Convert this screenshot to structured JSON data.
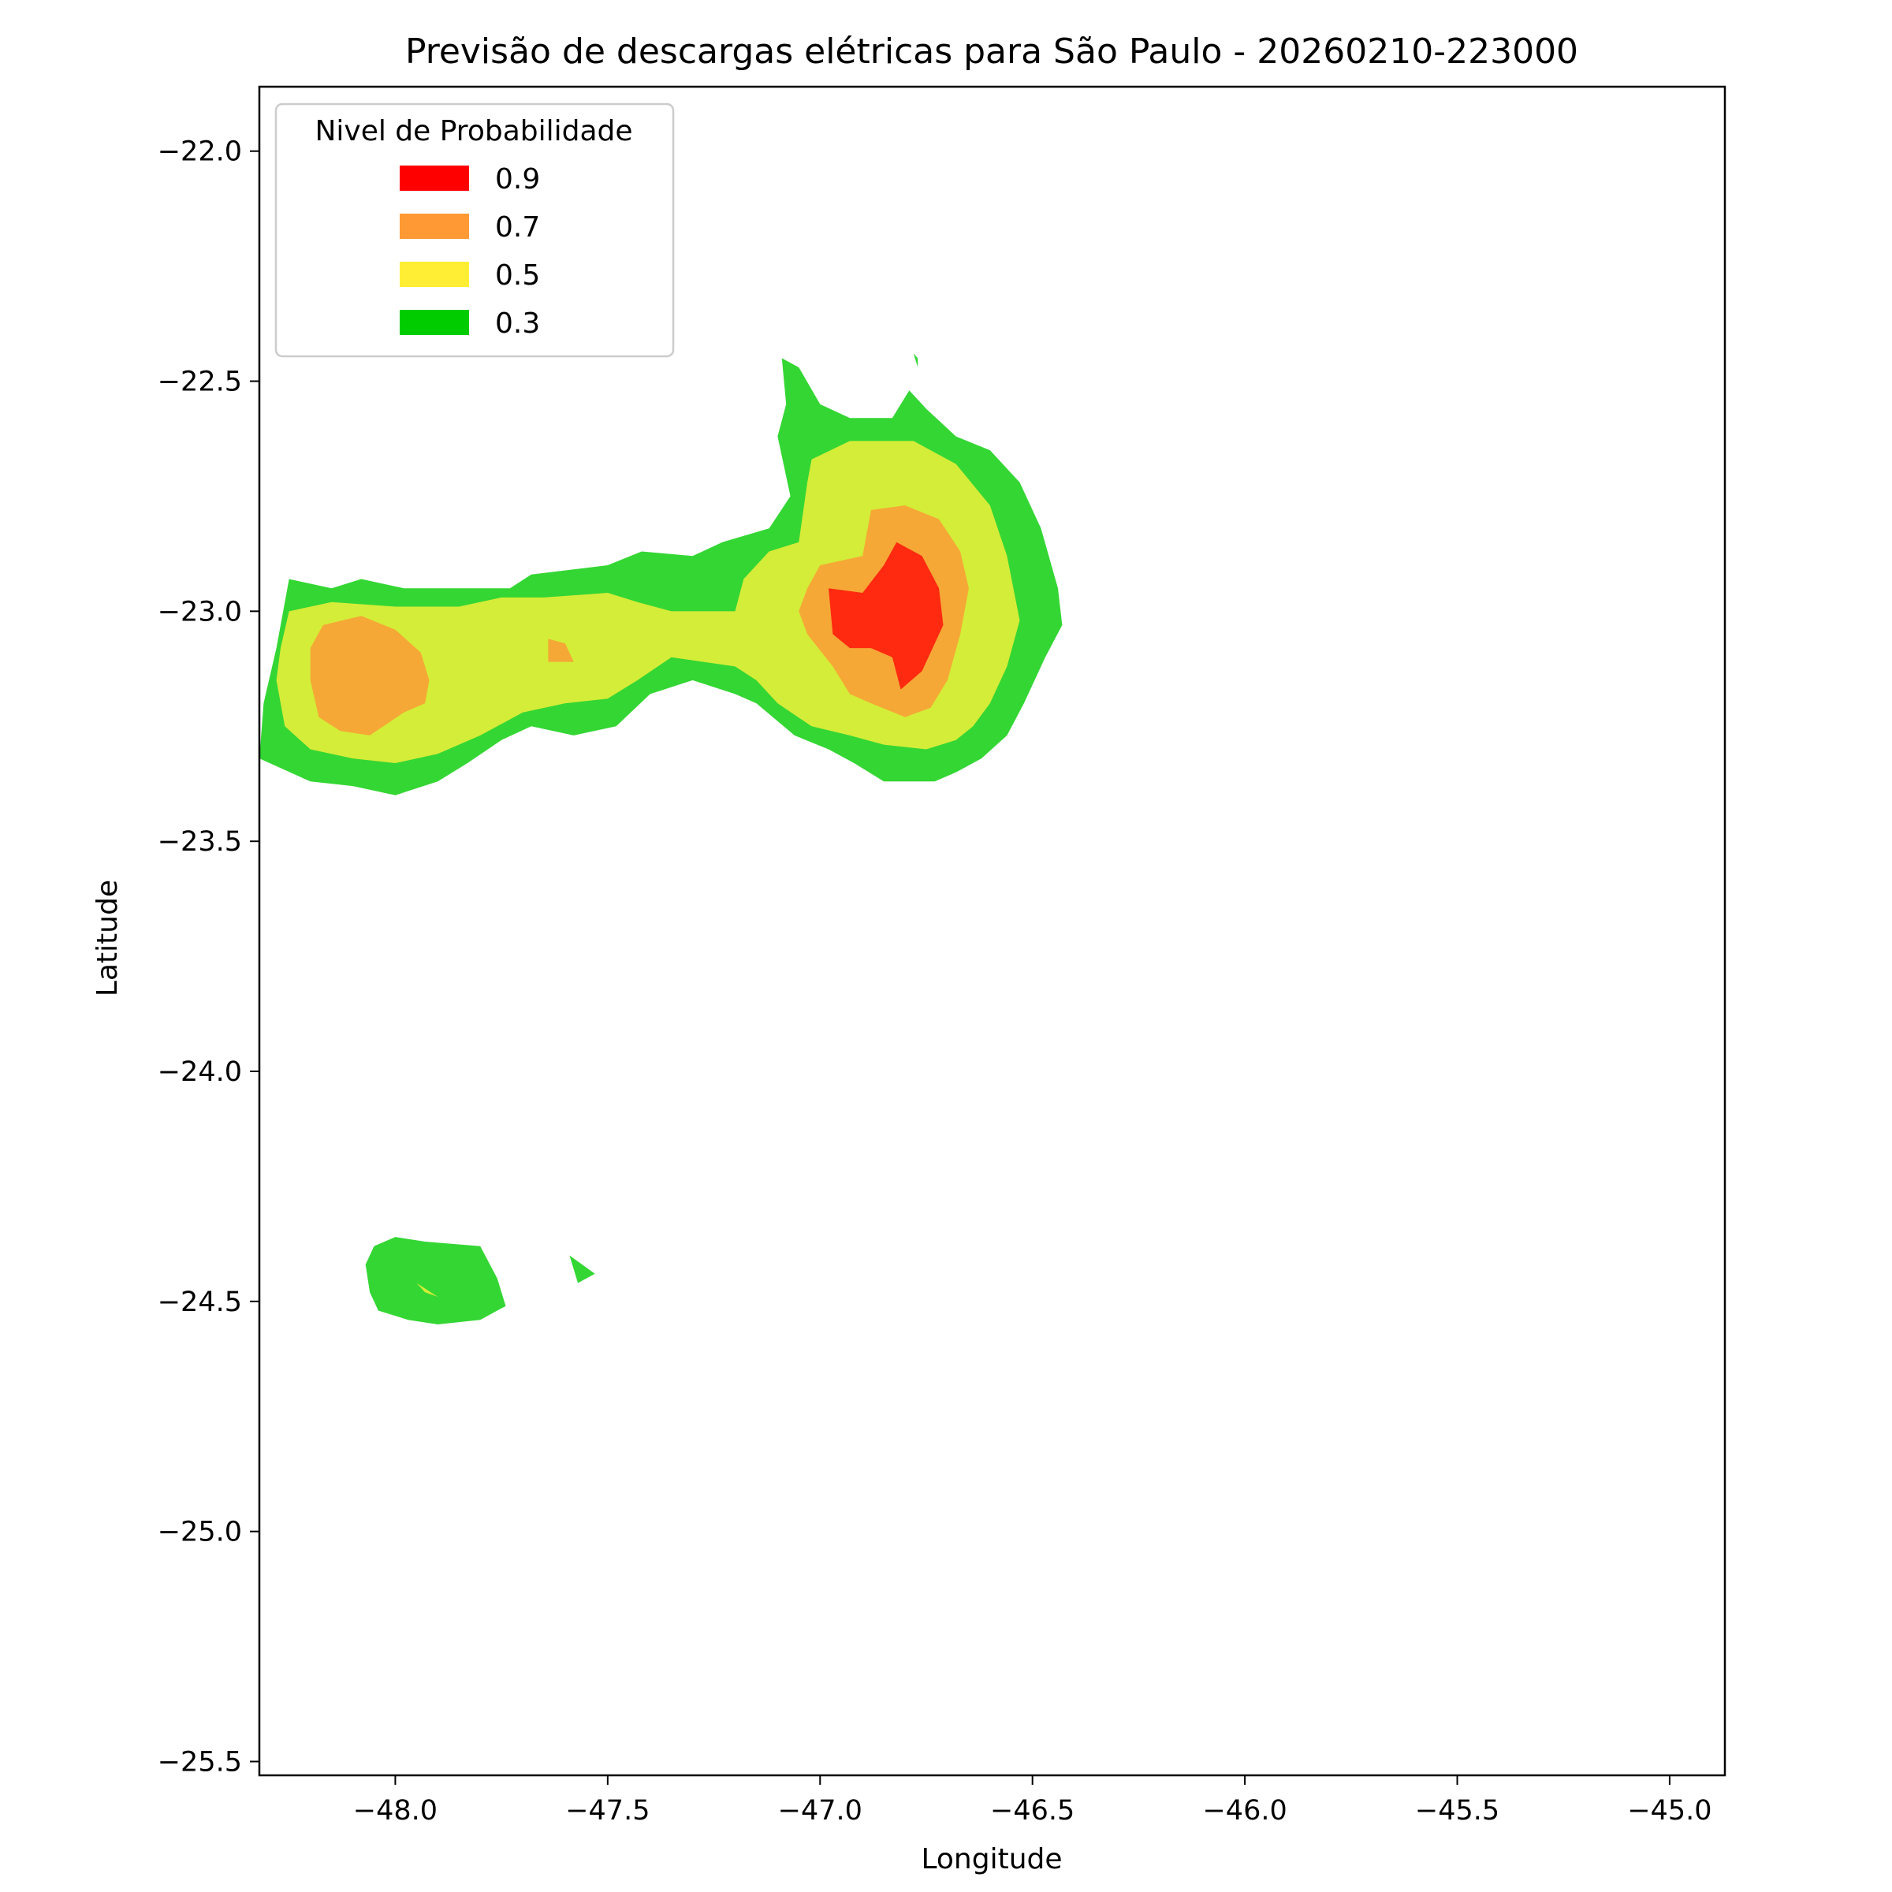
{
  "chart_data": {
    "type": "contour_map",
    "title": "Previsão de descargas elétricas para São Paulo - 20260210-223000",
    "xlabel": "Longitude",
    "ylabel": "Latitude",
    "xlim": [
      -48.32,
      -44.87
    ],
    "ylim": [
      -25.53,
      -21.86
    ],
    "x_ticks": [
      {
        "value": -48.0,
        "label": "−48.0"
      },
      {
        "value": -47.5,
        "label": "−47.5"
      },
      {
        "value": -47.0,
        "label": "−47.0"
      },
      {
        "value": -46.5,
        "label": "−46.5"
      },
      {
        "value": -46.0,
        "label": "−46.0"
      },
      {
        "value": -45.5,
        "label": "−45.5"
      },
      {
        "value": -45.0,
        "label": "−45.0"
      }
    ],
    "y_ticks": [
      {
        "value": -22.0,
        "label": "−22.0"
      },
      {
        "value": -22.5,
        "label": "−22.5"
      },
      {
        "value": -23.0,
        "label": "−23.0"
      },
      {
        "value": -23.5,
        "label": "−23.5"
      },
      {
        "value": -24.0,
        "label": "−24.0"
      },
      {
        "value": -24.5,
        "label": "−24.5"
      },
      {
        "value": -25.0,
        "label": "−25.0"
      },
      {
        "value": -25.5,
        "label": "−25.5"
      }
    ],
    "legend": {
      "title": "Nivel de Probabilidade",
      "position": "upper-left",
      "entries": [
        {
          "label": "0.9",
          "color": "#ff0000"
        },
        {
          "label": "0.7",
          "color": "#ff9933"
        },
        {
          "label": "0.5",
          "color": "#ffee33"
        },
        {
          "label": "0.3",
          "color": "#00cc00"
        }
      ]
    },
    "fill_colors": {
      "0.3": "#34d634",
      "0.5": "#d4ed38",
      "0.7": "#f5a836",
      "0.9": "#ff2a10"
    },
    "regions": [
      {
        "level": "0.3",
        "polygon": [
          [
            -48.32,
            -23.32
          ],
          [
            -48.31,
            -23.2
          ],
          [
            -48.28,
            -23.08
          ],
          [
            -48.25,
            -22.93
          ],
          [
            -48.15,
            -22.95
          ],
          [
            -48.08,
            -22.93
          ],
          [
            -47.98,
            -22.95
          ],
          [
            -47.85,
            -22.95
          ],
          [
            -47.73,
            -22.95
          ],
          [
            -47.68,
            -22.92
          ],
          [
            -47.5,
            -22.9
          ],
          [
            -47.42,
            -22.87
          ],
          [
            -47.3,
            -22.88
          ],
          [
            -47.23,
            -22.85
          ],
          [
            -47.12,
            -22.82
          ],
          [
            -47.07,
            -22.75
          ],
          [
            -47.1,
            -22.62
          ],
          [
            -47.08,
            -22.55
          ],
          [
            -47.09,
            -22.45
          ],
          [
            -47.05,
            -22.47
          ],
          [
            -47.0,
            -22.55
          ],
          [
            -46.93,
            -22.58
          ],
          [
            -46.83,
            -22.58
          ],
          [
            -46.79,
            -22.52
          ],
          [
            -46.75,
            -22.56
          ],
          [
            -46.68,
            -22.62
          ],
          [
            -46.6,
            -22.65
          ],
          [
            -46.53,
            -22.72
          ],
          [
            -46.48,
            -22.82
          ],
          [
            -46.44,
            -22.95
          ],
          [
            -46.43,
            -23.03
          ],
          [
            -46.47,
            -23.1
          ],
          [
            -46.52,
            -23.2
          ],
          [
            -46.56,
            -23.27
          ],
          [
            -46.62,
            -23.32
          ],
          [
            -46.68,
            -23.35
          ],
          [
            -46.73,
            -23.37
          ],
          [
            -46.85,
            -23.37
          ],
          [
            -46.92,
            -23.33
          ],
          [
            -46.98,
            -23.3
          ],
          [
            -47.06,
            -23.27
          ],
          [
            -47.15,
            -23.2
          ],
          [
            -47.2,
            -23.18
          ],
          [
            -47.3,
            -23.15
          ],
          [
            -47.4,
            -23.18
          ],
          [
            -47.48,
            -23.25
          ],
          [
            -47.58,
            -23.27
          ],
          [
            -47.68,
            -23.25
          ],
          [
            -47.75,
            -23.28
          ],
          [
            -47.83,
            -23.33
          ],
          [
            -47.9,
            -23.37
          ],
          [
            -48.0,
            -23.4
          ],
          [
            -48.1,
            -23.38
          ],
          [
            -48.2,
            -23.37
          ],
          [
            -48.32,
            -23.32
          ]
        ]
      },
      {
        "level": "0.3",
        "polygon": [
          [
            -48.07,
            -24.42
          ],
          [
            -48.05,
            -24.38
          ],
          [
            -48.0,
            -24.36
          ],
          [
            -47.93,
            -24.37
          ],
          [
            -47.8,
            -24.38
          ],
          [
            -47.76,
            -24.45
          ],
          [
            -47.74,
            -24.51
          ],
          [
            -47.8,
            -24.54
          ],
          [
            -47.9,
            -24.55
          ],
          [
            -47.97,
            -24.54
          ],
          [
            -48.04,
            -24.52
          ],
          [
            -48.06,
            -24.48
          ],
          [
            -48.07,
            -24.42
          ]
        ]
      },
      {
        "level": "0.3",
        "polygon": [
          [
            -47.59,
            -24.4
          ],
          [
            -47.53,
            -24.44
          ],
          [
            -47.57,
            -24.46
          ],
          [
            -47.59,
            -24.4
          ]
        ]
      },
      {
        "level": "0.3",
        "polygon": [
          [
            -46.78,
            -22.44
          ],
          [
            -46.77,
            -22.45
          ],
          [
            -46.77,
            -22.47
          ],
          [
            -46.78,
            -22.44
          ]
        ]
      },
      {
        "level": "0.5",
        "polygon": [
          [
            -48.27,
            -23.08
          ],
          [
            -48.25,
            -23.0
          ],
          [
            -48.15,
            -22.98
          ],
          [
            -48.0,
            -22.99
          ],
          [
            -47.85,
            -22.99
          ],
          [
            -47.75,
            -22.97
          ],
          [
            -47.65,
            -22.97
          ],
          [
            -47.5,
            -22.96
          ],
          [
            -47.43,
            -22.98
          ],
          [
            -47.35,
            -23.0
          ],
          [
            -47.2,
            -23.0
          ],
          [
            -47.18,
            -22.93
          ],
          [
            -47.12,
            -22.87
          ],
          [
            -47.05,
            -22.85
          ],
          [
            -47.03,
            -22.72
          ],
          [
            -47.02,
            -22.67
          ],
          [
            -46.93,
            -22.63
          ],
          [
            -46.78,
            -22.63
          ],
          [
            -46.68,
            -22.68
          ],
          [
            -46.6,
            -22.77
          ],
          [
            -46.56,
            -22.88
          ],
          [
            -46.53,
            -23.02
          ],
          [
            -46.56,
            -23.12
          ],
          [
            -46.6,
            -23.2
          ],
          [
            -46.64,
            -23.25
          ],
          [
            -46.68,
            -23.28
          ],
          [
            -46.75,
            -23.3
          ],
          [
            -46.85,
            -23.29
          ],
          [
            -46.93,
            -23.27
          ],
          [
            -47.02,
            -23.25
          ],
          [
            -47.1,
            -23.2
          ],
          [
            -47.15,
            -23.15
          ],
          [
            -47.2,
            -23.12
          ],
          [
            -47.35,
            -23.1
          ],
          [
            -47.43,
            -23.15
          ],
          [
            -47.5,
            -23.19
          ],
          [
            -47.6,
            -23.2
          ],
          [
            -47.7,
            -23.22
          ],
          [
            -47.8,
            -23.27
          ],
          [
            -47.9,
            -23.31
          ],
          [
            -48.0,
            -23.33
          ],
          [
            -48.1,
            -23.32
          ],
          [
            -48.2,
            -23.3
          ],
          [
            -48.26,
            -23.25
          ],
          [
            -48.28,
            -23.15
          ],
          [
            -48.27,
            -23.08
          ]
        ]
      },
      {
        "level": "0.5",
        "polygon": [
          [
            -47.95,
            -24.46
          ],
          [
            -47.93,
            -24.48
          ],
          [
            -47.9,
            -24.49
          ],
          [
            -47.95,
            -24.46
          ]
        ]
      },
      {
        "level": "0.7",
        "polygon": [
          [
            -48.17,
            -23.03
          ],
          [
            -48.08,
            -23.01
          ],
          [
            -48.0,
            -23.04
          ],
          [
            -47.94,
            -23.09
          ],
          [
            -47.92,
            -23.15
          ],
          [
            -47.93,
            -23.2
          ],
          [
            -47.98,
            -23.22
          ],
          [
            -48.06,
            -23.27
          ],
          [
            -48.13,
            -23.26
          ],
          [
            -48.18,
            -23.23
          ],
          [
            -48.2,
            -23.15
          ],
          [
            -48.2,
            -23.08
          ],
          [
            -48.17,
            -23.03
          ]
        ]
      },
      {
        "level": "0.7",
        "polygon": [
          [
            -47.64,
            -23.06
          ],
          [
            -47.6,
            -23.07
          ],
          [
            -47.58,
            -23.11
          ],
          [
            -47.64,
            -23.11
          ],
          [
            -47.64,
            -23.06
          ]
        ]
      },
      {
        "level": "0.7",
        "polygon": [
          [
            -47.0,
            -22.9
          ],
          [
            -46.9,
            -22.88
          ],
          [
            -46.88,
            -22.78
          ],
          [
            -46.8,
            -22.77
          ],
          [
            -46.72,
            -22.8
          ],
          [
            -46.67,
            -22.87
          ],
          [
            -46.65,
            -22.95
          ],
          [
            -46.67,
            -23.05
          ],
          [
            -46.7,
            -23.15
          ],
          [
            -46.74,
            -23.21
          ],
          [
            -46.8,
            -23.23
          ],
          [
            -46.88,
            -23.2
          ],
          [
            -46.93,
            -23.18
          ],
          [
            -46.97,
            -23.12
          ],
          [
            -47.03,
            -23.05
          ],
          [
            -47.05,
            -23.0
          ],
          [
            -47.03,
            -22.95
          ],
          [
            -47.0,
            -22.9
          ]
        ]
      },
      {
        "level": "0.9",
        "polygon": [
          [
            -46.98,
            -22.95
          ],
          [
            -46.9,
            -22.96
          ],
          [
            -46.85,
            -22.9
          ],
          [
            -46.82,
            -22.85
          ],
          [
            -46.76,
            -22.88
          ],
          [
            -46.72,
            -22.95
          ],
          [
            -46.71,
            -23.03
          ],
          [
            -46.76,
            -23.13
          ],
          [
            -46.81,
            -23.17
          ],
          [
            -46.83,
            -23.1
          ],
          [
            -46.88,
            -23.08
          ],
          [
            -46.93,
            -23.08
          ],
          [
            -46.97,
            -23.05
          ],
          [
            -46.98,
            -22.95
          ]
        ]
      }
    ]
  }
}
